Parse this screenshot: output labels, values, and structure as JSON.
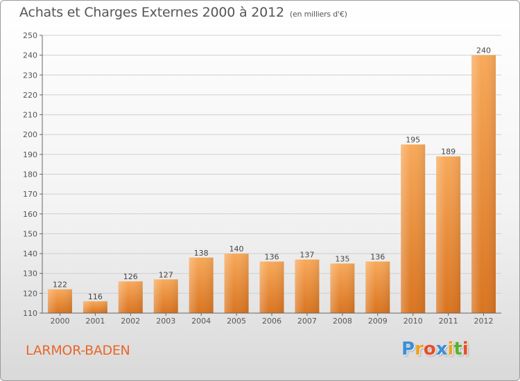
{
  "header": {
    "title": "Achats et Charges Externes 2000 à 2012",
    "unit": "(en milliers d'€)"
  },
  "footer": {
    "commune": "LARMOR-BADEN",
    "brand_letters": [
      "P",
      "r",
      "o",
      "x",
      "i",
      "t",
      "i"
    ],
    "brand_colors": [
      "#3b8fd8",
      "#f0a020",
      "#e84d2a",
      "#3b8fd8",
      "#f0a020",
      "#58b030",
      "#e84d2a"
    ]
  },
  "colors": {
    "bar_light": "#f8a95a",
    "bar_dark": "#d97420",
    "axis": "#666666",
    "grid": "#cfcfcf",
    "title": "#555555",
    "commune": "#e8662b"
  },
  "chart_data": {
    "type": "bar",
    "categories": [
      "2000",
      "2001",
      "2002",
      "2003",
      "2004",
      "2005",
      "2006",
      "2007",
      "2008",
      "2009",
      "2010",
      "2011",
      "2012"
    ],
    "values": [
      122,
      116,
      126,
      127,
      138,
      140,
      136,
      137,
      135,
      136,
      195,
      189,
      240
    ],
    "data_labels": [
      "122",
      "116",
      "126",
      "127",
      "138",
      "140",
      "136",
      "137",
      "135",
      "136",
      "195",
      "189",
      "240"
    ],
    "yticks": [
      "110",
      "120",
      "130",
      "140",
      "150",
      "160",
      "170",
      "180",
      "190",
      "200",
      "210",
      "220",
      "230",
      "240",
      "250"
    ],
    "ylim": [
      110,
      250
    ],
    "grid": true,
    "legend": "none"
  }
}
